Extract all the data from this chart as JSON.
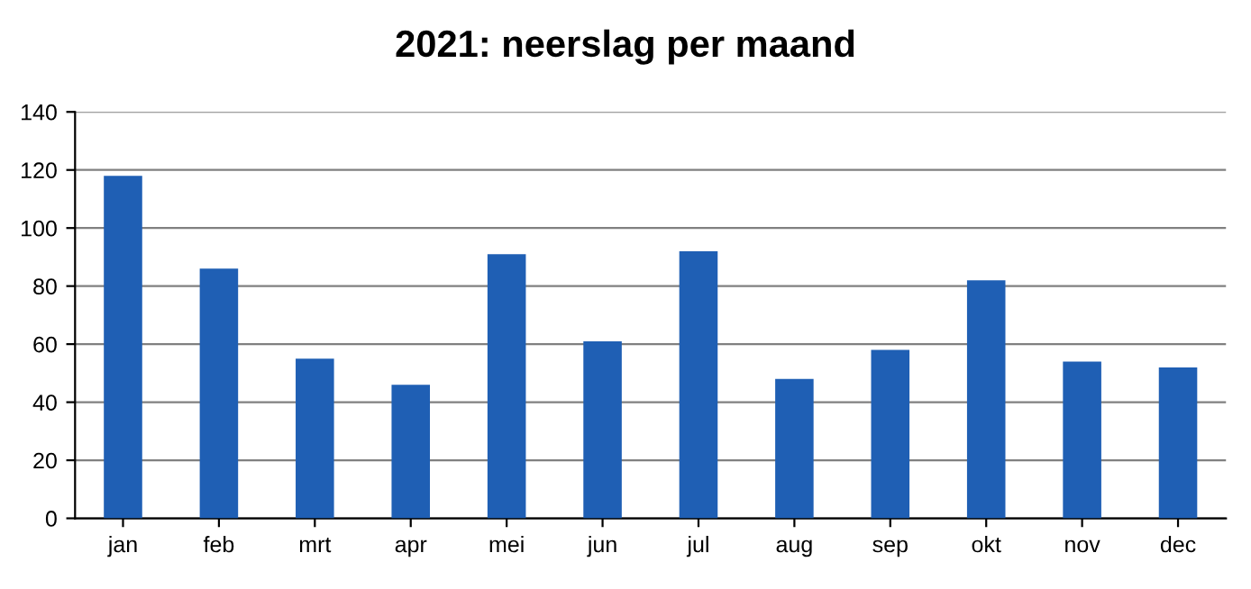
{
  "chart_data": {
    "type": "bar",
    "title": "2021: neerslag per maand",
    "categories": [
      "jan",
      "feb",
      "mrt",
      "apr",
      "mei",
      "jun",
      "jul",
      "aug",
      "sep",
      "okt",
      "nov",
      "dec"
    ],
    "values": [
      118,
      86,
      55,
      46,
      91,
      61,
      92,
      48,
      58,
      82,
      54,
      52
    ],
    "color": "#1f5fb4",
    "ylim": [
      0,
      140
    ],
    "yticks": [
      0,
      20,
      40,
      60,
      80,
      100,
      120,
      140
    ],
    "grid": "y"
  }
}
